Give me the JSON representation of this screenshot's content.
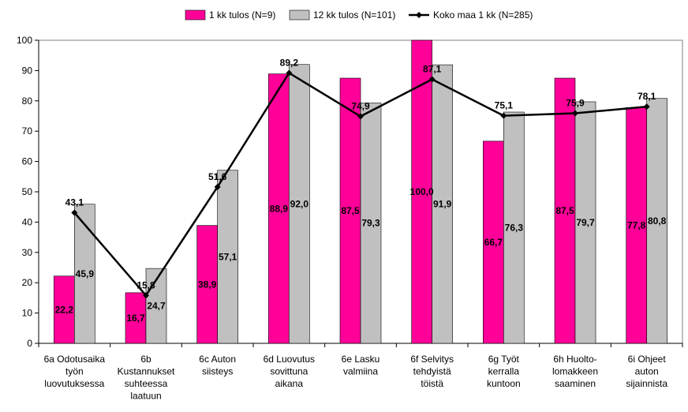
{
  "chart_data": {
    "type": "bar",
    "title": "",
    "xlabel": "",
    "ylabel": "",
    "ylim": [
      0,
      100
    ],
    "ytick_step": 10,
    "grid": false,
    "legend_position": "top",
    "categories": [
      [
        "6a Odotusaika",
        "työn",
        "luovutuksessa"
      ],
      [
        "6b",
        "Kustannukset",
        "suhteessa",
        "laatuun"
      ],
      [
        "6c Auton",
        "siisteys"
      ],
      [
        "6d Luovutus",
        "sovittuna",
        "aikana"
      ],
      [
        "6e Lasku",
        "valmiina"
      ],
      [
        "6f Selvitys",
        "tehdyistä",
        "töistä"
      ],
      [
        "6g Työt",
        "kerralla",
        "kuntoon"
      ],
      [
        "6h Huolto-",
        "lomakkeen",
        "saaminen"
      ],
      [
        "6i Ohjeet",
        "auton",
        "sijainnista"
      ]
    ],
    "series": [
      {
        "name": "1 kk tulos (N=9)",
        "kind": "bar",
        "color": "#FF0099",
        "values": [
          22.2,
          16.7,
          38.9,
          88.9,
          87.5,
          100.0,
          66.7,
          87.5,
          77.8
        ],
        "labels": [
          "22,2",
          "16,7",
          "38,9",
          "88,9",
          "87,5",
          "100,0",
          "66,7",
          "87,5",
          "77,8"
        ]
      },
      {
        "name": "12 kk tulos (N=101)",
        "kind": "bar",
        "color": "#C0C0C0",
        "values": [
          45.9,
          24.7,
          57.1,
          92.0,
          79.3,
          91.9,
          76.3,
          79.7,
          80.8
        ],
        "labels": [
          "45,9",
          "24,7",
          "57,1",
          "92,0",
          "79,3",
          "91,9",
          "76,3",
          "79,7",
          "80,8"
        ]
      },
      {
        "name": "Koko maa 1 kk (N=285)",
        "kind": "line",
        "color": "#000000",
        "values": [
          43.1,
          15.8,
          51.6,
          89.2,
          74.9,
          87.1,
          75.1,
          75.9,
          78.1
        ],
        "labels": [
          "43,1",
          "15,8",
          "51,6",
          "89,2",
          "74,9",
          "87,1",
          "75,1",
          "75,9",
          "78,1"
        ]
      }
    ]
  }
}
